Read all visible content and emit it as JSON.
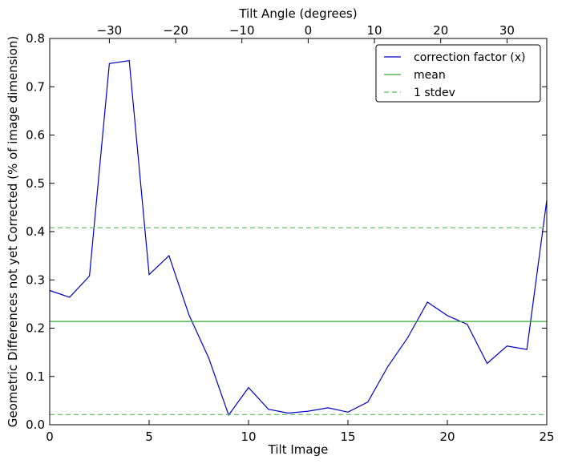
{
  "chart_data": {
    "type": "line",
    "xlabel": "Tilt Image",
    "ylabel": "Geometric Differences not yet Corrected (% of image dimension)",
    "x2label": "Tilt Angle (degrees)",
    "xlim": [
      0,
      25
    ],
    "ylim": [
      0,
      0.8
    ],
    "x2lim": [
      -39,
      36
    ],
    "xticks": [
      "0",
      "5",
      "10",
      "15",
      "20",
      "25"
    ],
    "yticks": [
      "0.0",
      "0.1",
      "0.2",
      "0.3",
      "0.4",
      "0.5",
      "0.6",
      "0.7",
      "0.8"
    ],
    "x2ticks": [
      "−30",
      "−20",
      "−10",
      "0",
      "10",
      "20",
      "30"
    ],
    "x2tick_values": [
      -30,
      -20,
      -10,
      0,
      10,
      20,
      30
    ],
    "legend_position": "top-right",
    "grid": false,
    "series": [
      {
        "name": "correction factor (x)",
        "color": "#0000cc",
        "style": "solid",
        "x": [
          0,
          1,
          2,
          3,
          4,
          5,
          6,
          7,
          8,
          9,
          10,
          11,
          12,
          13,
          14,
          15,
          16,
          17,
          18,
          19,
          20,
          21,
          22,
          23,
          24,
          25
        ],
        "y": [
          0.278,
          0.264,
          0.308,
          0.748,
          0.754,
          0.311,
          0.35,
          0.228,
          0.138,
          0.02,
          0.077,
          0.032,
          0.024,
          0.028,
          0.035,
          0.026,
          0.047,
          0.12,
          0.18,
          0.254,
          0.226,
          0.208,
          0.127,
          0.163,
          0.156,
          0.465
        ]
      },
      {
        "name": "mean",
        "color": "#33aa33",
        "style": "solid",
        "x": [
          0,
          25
        ],
        "y": [
          0.214,
          0.214
        ]
      },
      {
        "name": "1 stdev",
        "color": "#55bb55",
        "style": "dashed",
        "x": [
          0,
          25
        ],
        "y": [
          0.408,
          0.408
        ]
      },
      {
        "name": "",
        "color": "#55bb55",
        "style": "dashed",
        "x": [
          0,
          25
        ],
        "y": [
          0.021,
          0.021
        ]
      }
    ]
  }
}
